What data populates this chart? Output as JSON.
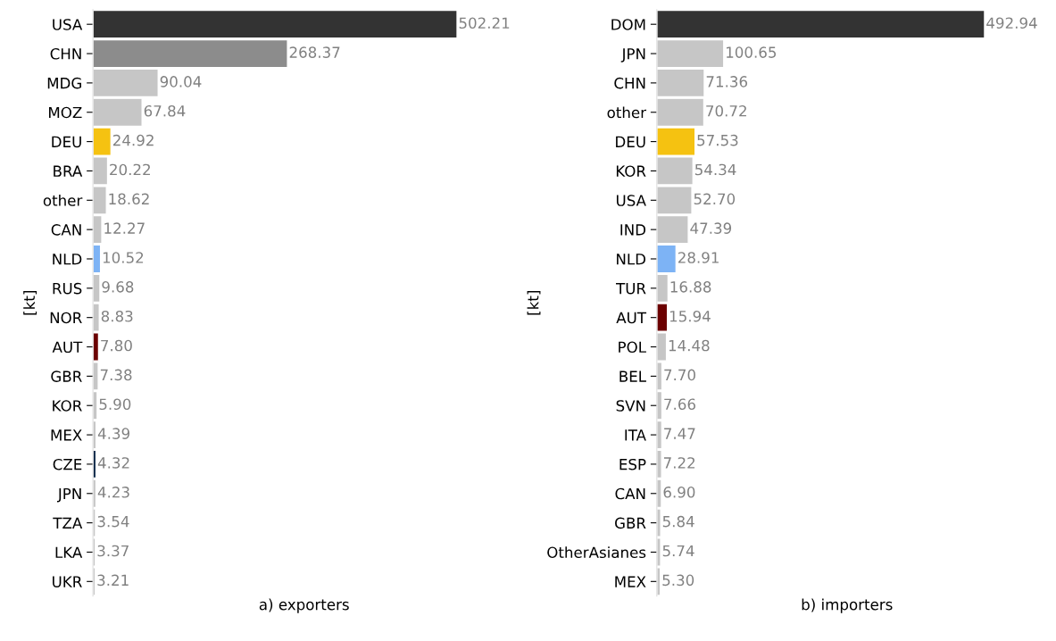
{
  "chart_data": [
    {
      "type": "bar",
      "orientation": "horizontal",
      "xlabel": "a) exporters",
      "ylabel": "[kt]",
      "tick_labels": "y",
      "grid": false,
      "legend": false,
      "categories": [
        "USA",
        "CHN",
        "MDG",
        "MOZ",
        "DEU",
        "BRA",
        "other",
        "CAN",
        "NLD",
        "RUS",
        "NOR",
        "AUT",
        "GBR",
        "KOR",
        "MEX",
        "CZE",
        "JPN",
        "TZA",
        "LKA",
        "UKR"
      ],
      "values": [
        502.21,
        268.37,
        90.04,
        67.84,
        24.92,
        20.22,
        18.62,
        12.27,
        10.52,
        9.68,
        8.83,
        7.8,
        7.38,
        5.9,
        4.39,
        4.32,
        4.23,
        3.54,
        3.37,
        3.21
      ],
      "value_labels": [
        "502.21",
        "268.37",
        "90.04",
        "67.84",
        "24.92",
        "20.22",
        "18.62",
        "12.27",
        "10.52",
        "9.68",
        "8.83",
        "7.80",
        "7.38",
        "5.90",
        "4.39",
        "4.32",
        "4.23",
        "3.54",
        "3.37",
        "3.21"
      ],
      "colors": [
        "#333333",
        "#8c8c8c",
        "#c6c6c6",
        "#c6c6c6",
        "#f5c211",
        "#c6c6c6",
        "#c6c6c6",
        "#c6c6c6",
        "#7db3f5",
        "#c6c6c6",
        "#c6c6c6",
        "#6b0000",
        "#c6c6c6",
        "#c6c6c6",
        "#c6c6c6",
        "#0d2a4a",
        "#c6c6c6",
        "#c6c6c6",
        "#c6c6c6",
        "#c6c6c6"
      ]
    },
    {
      "type": "bar",
      "orientation": "horizontal",
      "xlabel": "b) importers",
      "ylabel": "[kt]",
      "tick_labels": "y",
      "grid": false,
      "legend": false,
      "categories": [
        "DOM",
        "JPN",
        "CHN",
        "other",
        "DEU",
        "KOR",
        "USA",
        "IND",
        "NLD",
        "TUR",
        "AUT",
        "POL",
        "BEL",
        "SVN",
        "ITA",
        "ESP",
        "CAN",
        "GBR",
        "OtherAsianes",
        "MEX"
      ],
      "values": [
        492.94,
        100.65,
        71.36,
        70.72,
        57.53,
        54.34,
        52.7,
        47.39,
        28.91,
        16.88,
        15.94,
        14.48,
        7.7,
        7.66,
        7.47,
        7.22,
        6.9,
        5.84,
        5.74,
        5.3
      ],
      "value_labels": [
        "492.94",
        "100.65",
        "71.36",
        "70.72",
        "57.53",
        "54.34",
        "52.70",
        "47.39",
        "28.91",
        "16.88",
        "15.94",
        "14.48",
        "7.70",
        "7.66",
        "7.47",
        "7.22",
        "6.90",
        "5.84",
        "5.74",
        "5.30"
      ],
      "colors": [
        "#333333",
        "#c6c6c6",
        "#c6c6c6",
        "#c6c6c6",
        "#f5c211",
        "#c6c6c6",
        "#c6c6c6",
        "#c6c6c6",
        "#7db3f5",
        "#c6c6c6",
        "#6b0000",
        "#c6c6c6",
        "#c6c6c6",
        "#c6c6c6",
        "#c6c6c6",
        "#c6c6c6",
        "#c6c6c6",
        "#c6c6c6",
        "#c6c6c6",
        "#c6c6c6"
      ]
    }
  ]
}
